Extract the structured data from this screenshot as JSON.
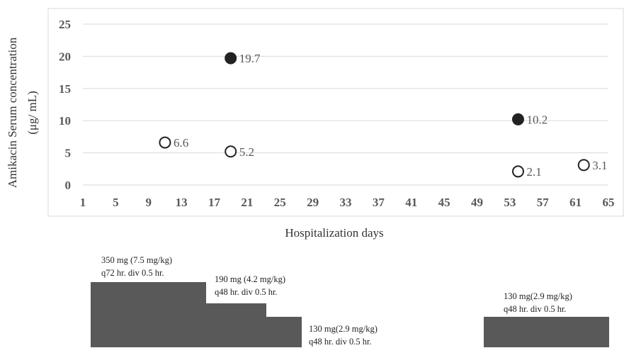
{
  "chart_data": {
    "type": "scatter",
    "title": "",
    "xlabel": "Hospitalization days",
    "ylabel_line1": "Amikacin Serum concentration",
    "ylabel_line2": "(μg/ mL)",
    "xlim": [
      1,
      65
    ],
    "ylim": [
      0,
      25
    ],
    "x_ticks": [
      1,
      5,
      9,
      13,
      17,
      21,
      25,
      29,
      33,
      37,
      41,
      45,
      49,
      53,
      57,
      61,
      65
    ],
    "y_ticks": [
      0,
      5,
      10,
      15,
      20,
      25
    ],
    "grid": true,
    "series": [
      {
        "marker": "filled",
        "color": "#222222",
        "points": [
          {
            "x": 19,
            "y": 19.7,
            "label": "19.7"
          },
          {
            "x": 54,
            "y": 10.2,
            "label": "10.2"
          }
        ]
      },
      {
        "marker": "open",
        "color": "#222222",
        "points": [
          {
            "x": 11,
            "y": 6.6,
            "label": "6.6"
          },
          {
            "x": 19,
            "y": 5.2,
            "label": "5.2"
          },
          {
            "x": 54,
            "y": 2.1,
            "label": "2.1"
          },
          {
            "x": 62,
            "y": 3.1,
            "label": "3.1"
          }
        ]
      }
    ]
  },
  "dosing": [
    {
      "line1": "350 mg (7.5 mg/kg)",
      "line2": "q72 hr. div 0.5 hr."
    },
    {
      "line1": "190 mg (4.2 mg/kg)",
      "line2": "q48 hr. div 0.5 hr."
    },
    {
      "line1": "130 mg(2.9 mg/kg)",
      "line2": "q48 hr.   div 0.5 hr."
    },
    {
      "line1": "130 mg(2.9 mg/kg)",
      "line2": "q48 hr.   div 0.5 hr."
    }
  ],
  "colors": {
    "grid": "#d9d9d9",
    "bar": "#595959",
    "frame": "#d9d9d9"
  }
}
